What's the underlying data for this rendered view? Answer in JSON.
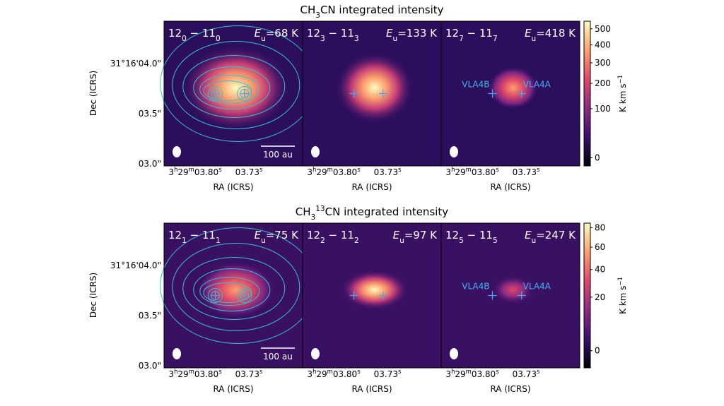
{
  "figures": [
    {
      "title": [
        "CH",
        "3",
        "CN integrated intensity"
      ],
      "dec_label": "Dec (ICRS)",
      "ra_label": "RA (ICRS)",
      "dec_ticks": [
        "31°16'04.0\"",
        "03.5\"",
        "03.0\""
      ],
      "ra_ticks": [
        [
          "3",
          "h",
          "29",
          "m",
          "03.80",
          "s"
        ],
        [
          "03.73",
          "s"
        ]
      ],
      "panels": [
        {
          "transition": [
            "12",
            "0",
            " − 11",
            "0"
          ],
          "energy": [
            "E",
            "u",
            "=68 K"
          ],
          "scale_bar": "100 au"
        },
        {
          "transition": [
            "12",
            "3",
            " − 11",
            "3"
          ],
          "energy": [
            "E",
            "u",
            "=133 K"
          ]
        },
        {
          "transition": [
            "12",
            "7",
            " − 11",
            "7"
          ],
          "energy": [
            "E",
            "u",
            "=418 K"
          ],
          "sources": [
            "VLA4B",
            "VLA4A"
          ]
        }
      ],
      "colorbar": {
        "label": [
          "K km s",
          "−1"
        ],
        "scale": "power",
        "exponent": 0.6,
        "lim": [
          -5,
          550
        ],
        "ticks": [
          0,
          100,
          200,
          300,
          400,
          500
        ]
      }
    },
    {
      "title": [
        "CH",
        "3",
        "",
        "13",
        "CN integrated intensity"
      ],
      "dec_label": "Dec (ICRS)",
      "ra_label": "RA (ICRS)",
      "dec_ticks": [
        "31°16'04.0\"",
        "03.5\"",
        "03.0\""
      ],
      "ra_ticks": [
        [
          "3",
          "h",
          "29",
          "m",
          "03.80",
          "s"
        ],
        [
          "03.73",
          "s"
        ]
      ],
      "panels": [
        {
          "transition": [
            "12",
            "1",
            " − 11",
            "1"
          ],
          "energy": [
            "E",
            "u",
            "=75 K"
          ],
          "scale_bar": "100 au"
        },
        {
          "transition": [
            "12",
            "2",
            " − 11",
            "2"
          ],
          "energy": [
            "E",
            "u",
            "=97 K"
          ]
        },
        {
          "transition": [
            "12",
            "5",
            " − 11",
            "5"
          ],
          "energy": [
            "E",
            "u",
            "=247 K"
          ],
          "sources": [
            "VLA4B",
            "VLA4A"
          ]
        }
      ],
      "colorbar": {
        "label": [
          "K km s",
          "−1"
        ],
        "scale": "power",
        "exponent": 0.6,
        "lim": [
          -3,
          85
        ],
        "ticks": [
          0,
          20,
          40,
          60,
          80
        ]
      }
    }
  ]
}
